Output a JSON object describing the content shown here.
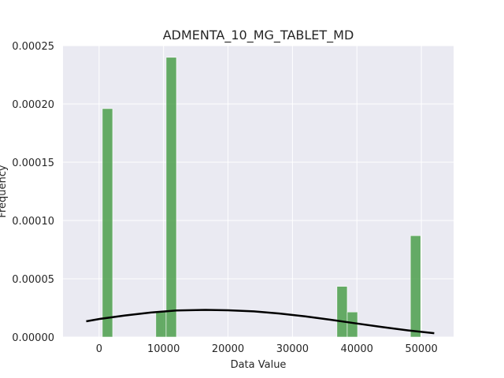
{
  "chart_data": {
    "type": "bar",
    "title": "ADMENTA_10_MG_TABLET_MD",
    "xlabel": "Data Value",
    "ylabel": "Frequency",
    "xlim": [
      -5600,
      55000
    ],
    "ylim": [
      0,
      0.00025
    ],
    "x_ticks": [
      0,
      10000,
      20000,
      30000,
      40000,
      50000
    ],
    "y_ticks": [
      0.0,
      5e-05,
      0.0001,
      0.00015,
      0.0002,
      0.00025
    ],
    "x_tick_labels": [
      "0",
      "10000",
      "20000",
      "30000",
      "40000",
      "50000"
    ],
    "y_tick_labels": [
      "0.00000",
      "0.00005",
      "0.00010",
      "0.00015",
      "0.00020",
      "0.00025"
    ],
    "grid": true,
    "background": "#eaeaf2",
    "bar_color": "#4c9f4c",
    "curve_color": "#000000",
    "bins": [
      {
        "x0": 500,
        "x1": 2100,
        "value": 0.000196
      },
      {
        "x0": 8800,
        "x1": 10400,
        "value": 2.15e-05
      },
      {
        "x0": 10400,
        "x1": 12000,
        "value": 0.00024
      },
      {
        "x0": 36900,
        "x1": 38500,
        "value": 4.35e-05
      },
      {
        "x0": 38500,
        "x1": 40100,
        "value": 2.15e-05
      },
      {
        "x0": 48300,
        "x1": 49900,
        "value": 8.7e-05
      }
    ],
    "density_curve": {
      "x": [
        -2000,
        0,
        4000,
        8000,
        12000,
        16500,
        20000,
        24000,
        28000,
        32000,
        36000,
        40000,
        44000,
        48000,
        52000
      ],
      "y": [
        1.35e-05,
        1.55e-05,
        1.85e-05,
        2.1e-05,
        2.28e-05,
        2.33e-05,
        2.3e-05,
        2.2e-05,
        2.02e-05,
        1.77e-05,
        1.48e-05,
        1.16e-05,
        8.5e-06,
        5.7e-06,
        3.3e-06
      ]
    }
  }
}
